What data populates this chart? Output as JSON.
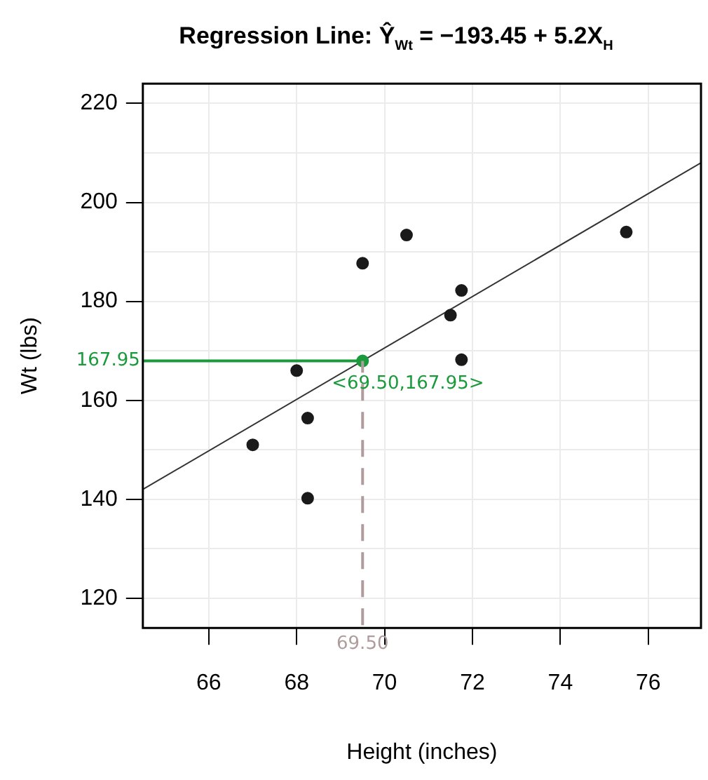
{
  "chart_data": {
    "type": "scatter",
    "title": "Regression Line:  Ŷ$_{Wt}$ = −193.45 + 5.2X$_{H}$",
    "xlabel": "Height (inches)",
    "ylabel": "Wt (lbs)",
    "xlim": [
      64.5,
      77.2
    ],
    "xticks": [
      66,
      68,
      70,
      72,
      74,
      76
    ],
    "ylim": [
      114,
      224
    ],
    "yticks": [
      120,
      {
        "value": 130,
        "label": null
      },
      140,
      {
        "value": 150,
        "label": null
      },
      160,
      {
        "value": 170,
        "label": null
      },
      180,
      {
        "value": 190,
        "label": null
      },
      200,
      {
        "value": 210,
        "label": null
      },
      220
    ],
    "grid": true,
    "legend": false,
    "marker": "circle",
    "series": [
      {
        "color": "#1a1a1a",
        "x": [
          67.0,
          68.0,
          68.25,
          68.25,
          69.5,
          70.5,
          71.5,
          71.75,
          71.75,
          75.5
        ],
        "values": [
          151,
          166,
          156.4,
          140.2,
          187.7,
          193.4,
          177.2,
          182.2,
          168.2,
          194.0
        ]
      },
      {
        "type": "line",
        "marker": "none",
        "color": "#333333",
        "x": [
          64.5,
          77.2
        ],
        "values": [
          142,
          208
        ]
      },
      {
        "color": "#1a9a3a",
        "x": [
          69.5
        ],
        "values": [
          167.95
        ]
      }
    ],
    "ref_lines": [
      {
        "axis": "y",
        "value": 167.95,
        "label": "167.95",
        "color": "#1a9a3a",
        "line_style": "solid"
      },
      {
        "axis": "x",
        "value": 69.5,
        "label": "69.50",
        "color": "#b09c9c",
        "line_style": "dashed"
      }
    ],
    "annotations": [
      {
        "text": "<69.50,167.95>",
        "x": 69.5,
        "y": 167.95
      }
    ]
  }
}
